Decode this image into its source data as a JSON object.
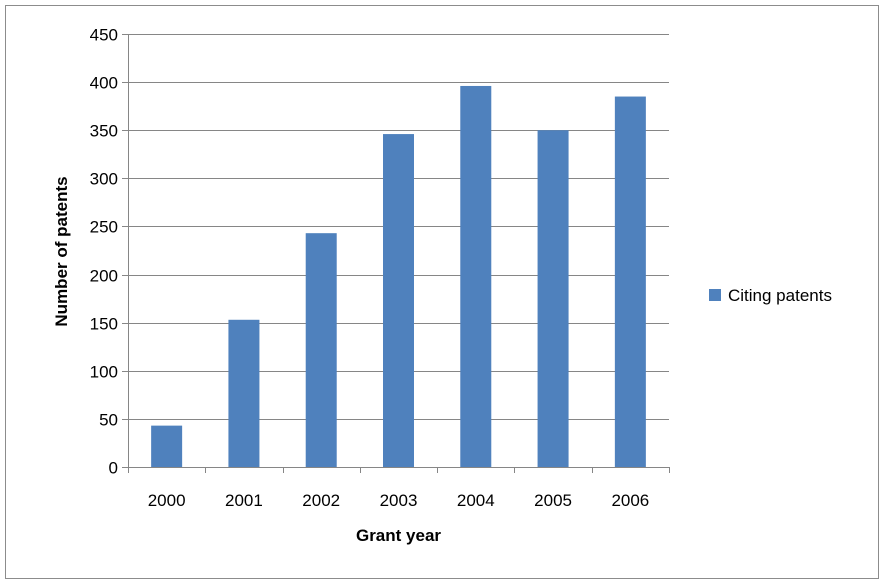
{
  "chart_data": {
    "type": "bar",
    "categories": [
      "2000",
      "2001",
      "2002",
      "2003",
      "2004",
      "2005",
      "2006"
    ],
    "series": [
      {
        "name": "Citing patents",
        "values": [
          43,
          153,
          243,
          346,
          396,
          350,
          385
        ],
        "color": "#4f81bd"
      }
    ],
    "title": "",
    "xlabel": "Grant year",
    "ylabel": "Number of patents",
    "ylim": [
      0,
      450
    ],
    "yticks": [
      0,
      50,
      100,
      150,
      200,
      250,
      300,
      350,
      400,
      450
    ],
    "grid": true,
    "legend": "right"
  }
}
